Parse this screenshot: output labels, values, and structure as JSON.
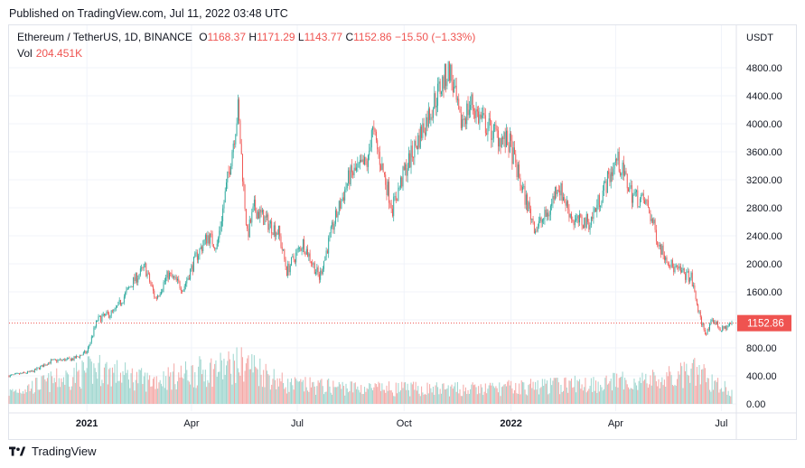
{
  "header": {
    "published": "Published on TradingView.com, Jul 11, 2022 03:48 UTC"
  },
  "legend": {
    "symbol": "Ethereum / TetherUS, 1D, BINANCE",
    "o_label": "O",
    "o": "1168.37",
    "h_label": "H",
    "h": "1171.29",
    "l_label": "L",
    "l": "1143.77",
    "c_label": "C",
    "c": "1152.86",
    "change": "−15.50 (−1.33%)",
    "vol_label": "Vol",
    "vol": "204.451K"
  },
  "footer": {
    "brand": "TradingView",
    "logo_icon": "tradingview-logo-icon"
  },
  "colors": {
    "up": "#26a69a",
    "down": "#ef5350",
    "up_vol": "#9fd6cf",
    "down_vol": "#f4a9a7",
    "grid": "#f0f3fa"
  },
  "chart_data": {
    "type": "candlestick",
    "currency_label": "USDT",
    "last_price_label": "1152.86",
    "last_price": 1152.86,
    "y_ticks": [
      "4800.00",
      "4400.00",
      "4000.00",
      "3600.00",
      "3200.00",
      "2800.00",
      "2400.00",
      "2000.00",
      "1600.00",
      "1200.00",
      "800.00",
      "400.00",
      "0.00"
    ],
    "price_ylim": [
      800,
      4800
    ],
    "volume_ticks": [
      0,
      400
    ],
    "x_ticks": [
      {
        "label": "2021",
        "bold": true,
        "date": "2021-01-01"
      },
      {
        "label": "Apr",
        "bold": false,
        "date": "2021-04-01"
      },
      {
        "label": "Jul",
        "bold": false,
        "date": "2021-07-01"
      },
      {
        "label": "Oct",
        "bold": false,
        "date": "2021-10-01"
      },
      {
        "label": "2022",
        "bold": true,
        "date": "2022-01-01"
      },
      {
        "label": "Apr",
        "bold": false,
        "date": "2022-04-01"
      },
      {
        "label": "Jul",
        "bold": false,
        "date": "2022-07-01"
      }
    ],
    "date_range": [
      "2020-10-26",
      "2022-07-10"
    ],
    "approx_close_path": [
      [
        "2020-10-26",
        400
      ],
      [
        "2020-11-15",
        460
      ],
      [
        "2020-12-01",
        610
      ],
      [
        "2020-12-20",
        640
      ],
      [
        "2021-01-01",
        740
      ],
      [
        "2021-01-10",
        1200
      ],
      [
        "2021-01-25",
        1320
      ],
      [
        "2021-02-10",
        1750
      ],
      [
        "2021-02-20",
        1950
      ],
      [
        "2021-03-01",
        1500
      ],
      [
        "2021-03-12",
        1850
      ],
      [
        "2021-03-25",
        1650
      ],
      [
        "2021-04-05",
        2100
      ],
      [
        "2021-04-15",
        2400
      ],
      [
        "2021-04-23",
        2250
      ],
      [
        "2021-05-03",
        3300
      ],
      [
        "2021-05-11",
        4200
      ],
      [
        "2021-05-19",
        2400
      ],
      [
        "2021-05-25",
        2800
      ],
      [
        "2021-06-05",
        2600
      ],
      [
        "2021-06-15",
        2450
      ],
      [
        "2021-06-22",
        1900
      ],
      [
        "2021-07-06",
        2300
      ],
      [
        "2021-07-20",
        1800
      ],
      [
        "2021-08-01",
        2550
      ],
      [
        "2021-08-15",
        3250
      ],
      [
        "2021-08-31",
        3450
      ],
      [
        "2021-09-03",
        3950
      ],
      [
        "2021-09-21",
        2800
      ],
      [
        "2021-10-01",
        3300
      ],
      [
        "2021-10-15",
        3850
      ],
      [
        "2021-10-29",
        4400
      ],
      [
        "2021-11-09",
        4800
      ],
      [
        "2021-11-18",
        4000
      ],
      [
        "2021-11-28",
        4300
      ],
      [
        "2021-12-04",
        4100
      ],
      [
        "2021-12-15",
        3900
      ],
      [
        "2021-12-31",
        3700
      ],
      [
        "2022-01-10",
        3100
      ],
      [
        "2022-01-22",
        2500
      ],
      [
        "2022-02-03",
        2750
      ],
      [
        "2022-02-10",
        3150
      ],
      [
        "2022-02-24",
        2600
      ],
      [
        "2022-03-10",
        2600
      ],
      [
        "2022-04-02",
        3500
      ],
      [
        "2022-04-15",
        3000
      ],
      [
        "2022-04-28",
        2850
      ],
      [
        "2022-05-09",
        2250
      ],
      [
        "2022-05-20",
        1950
      ],
      [
        "2022-06-05",
        1800
      ],
      [
        "2022-06-13",
        1200
      ],
      [
        "2022-06-18",
        1000
      ],
      [
        "2022-06-24",
        1200
      ],
      [
        "2022-07-01",
        1050
      ],
      [
        "2022-07-10",
        1152.86
      ]
    ],
    "approx_volume_k": [
      [
        "2020-10-26",
        180
      ],
      [
        "2021-01-11",
        550
      ],
      [
        "2021-02-23",
        360
      ],
      [
        "2021-05-19",
        640
      ],
      [
        "2021-06-22",
        300
      ],
      [
        "2021-09-07",
        240
      ],
      [
        "2021-12-04",
        230
      ],
      [
        "2022-05-12",
        380
      ],
      [
        "2022-06-13",
        510
      ],
      [
        "2022-06-18",
        400
      ],
      [
        "2022-07-10",
        204.451
      ]
    ]
  }
}
